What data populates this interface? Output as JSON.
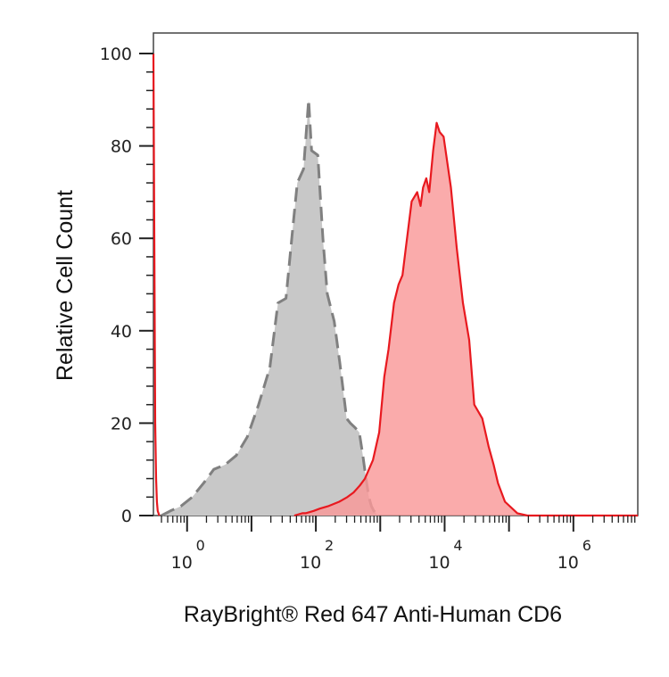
{
  "chart_data": {
    "type": "area",
    "title": "",
    "xlabel": "RayBright® Red 647 Anti-Human CD6",
    "ylabel": "Relative Cell Count",
    "xscale": "log",
    "xlim": [
      0.3,
      10000000
    ],
    "ylim": [
      0,
      100
    ],
    "x_ticks": [
      {
        "value": 1,
        "base": "10",
        "exp": "0"
      },
      {
        "value": 100,
        "base": "10",
        "exp": "2"
      },
      {
        "value": 10000,
        "base": "10",
        "exp": "4"
      },
      {
        "value": 1000000,
        "base": "10",
        "exp": "6"
      }
    ],
    "y_ticks": [
      {
        "value": 0,
        "label": "0"
      },
      {
        "value": 20,
        "label": "20"
      },
      {
        "value": 40,
        "label": "40"
      },
      {
        "value": 60,
        "label": "60"
      },
      {
        "value": 80,
        "label": "80"
      },
      {
        "value": 100,
        "label": "100"
      }
    ],
    "grid": false,
    "series": [
      {
        "style": "gray-dashed",
        "fill": "#c8c8c8",
        "stroke": "#808080",
        "x": [
          0.4,
          0.55,
          0.8,
          1.2,
          1.8,
          2.6,
          3.9,
          5.8,
          8.6,
          12.9,
          19.3,
          25.8,
          34.4,
          42.9,
          51.5,
          64.4,
          77.3,
          85.9,
          107.3,
          128.8,
          150.3,
          193.2,
          236.1,
          300.5,
          343.4,
          407.8,
          472.2,
          536.6,
          601,
          665.4,
          729.8,
          794.2,
          858.6,
          944.5
        ],
        "y": [
          0,
          1,
          2,
          4,
          7,
          10,
          11,
          13,
          17,
          24,
          32,
          46,
          47,
          61,
          72,
          75,
          90,
          79,
          78,
          60,
          48,
          42,
          33,
          21,
          20,
          19,
          18,
          13,
          8,
          4,
          2,
          1,
          0.5,
          0
        ]
      },
      {
        "style": "red-solid",
        "fill": "#f99999",
        "stroke": "#e8191f",
        "x": [
          46.2,
          61.6,
          69.3,
          92.4,
          115.5,
          154,
          231,
          308,
          384.9,
          481.2,
          577.4,
          769.9,
          962.4,
          1154.9,
          1347.3,
          1636.1,
          1924.8,
          2213.6,
          2502.3,
          3079.7,
          3753.5,
          4234.6,
          4619.6,
          5196.9,
          5774.4,
          6640.5,
          7506.7,
          8372.8,
          9623.9,
          12511.4,
          15398.6,
          19248.3,
          24060.4,
          28872.5,
          38496.7,
          48120.9,
          57745.1,
          67369.3,
          86617.6,
          134738.5,
          192483.6,
          385000,
          1000000,
          10000000
        ],
        "y": [
          0,
          0.5,
          0.5,
          1,
          1.5,
          2,
          3,
          4,
          5,
          6.5,
          8,
          12,
          18,
          30,
          36,
          46,
          50,
          52,
          58,
          68,
          70,
          67,
          71,
          73,
          70,
          79,
          85,
          83,
          82,
          71,
          58,
          46,
          38,
          24,
          21,
          15,
          11,
          7,
          3,
          0.5,
          0,
          0,
          0,
          0
        ]
      },
      {
        "style": "red-solid",
        "fill": "none",
        "stroke": "#e8191f",
        "x": [
          0.3,
          0.305,
          0.31,
          0.315,
          0.32,
          0.33,
          0.34,
          0.35,
          0.37
        ],
        "y": [
          100,
          80,
          60,
          40,
          20,
          8,
          3,
          1,
          0
        ]
      }
    ]
  }
}
